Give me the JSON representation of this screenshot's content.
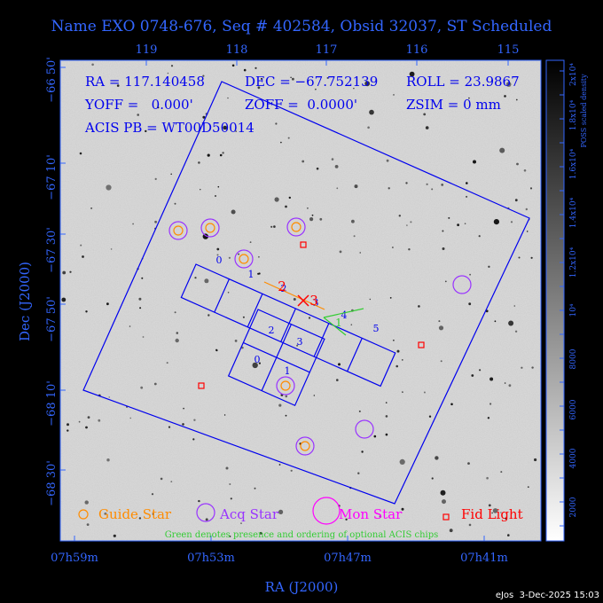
{
  "title": "Name EXO 0748-676, Seq # 402584, Obsid 32037, ST Scheduled",
  "info": {
    "ra": "RA = 117.140458",
    "dec": "DEC = −67.752139",
    "roll": "ROLL = 23.9867",
    "yoff": "YOFF =   0.000'",
    "zoff": "ZOFF =  0.0000'",
    "zsim": "ZSIM = 0 mm",
    "acis_pb": "ACIS PB = WT00D50014"
  },
  "axes": {
    "xlabel": "RA (J2000)",
    "ylabel": "Dec (J2000)",
    "bottom_ticks": [
      "07h59m",
      "07h53m",
      "07h47m",
      "07h41m"
    ],
    "top_ticks": [
      "119",
      "118",
      "117",
      "116",
      "115"
    ],
    "left_ticks": [
      "−66 50'",
      "−67 10'",
      "−67 30'",
      "−67 50'",
      "−68 10'",
      "−68 30'"
    ]
  },
  "colorbar": {
    "label": "POSS scaled density",
    "ticks": [
      "2000",
      "4000",
      "6000",
      "8000",
      "10⁴",
      "1.2x10⁴",
      "1.4x10⁴",
      "1.6x10⁴",
      "1.8x10⁴",
      "2x10⁴"
    ]
  },
  "chips": {
    "s_labels": [
      "0",
      "1",
      "2",
      "3",
      "4",
      "5"
    ],
    "i_labels": [
      "2",
      "3",
      "0",
      "1"
    ],
    "markers": [
      "2",
      "3",
      "1"
    ]
  },
  "legend": {
    "guide": "Guide Star",
    "acq": "Acq Star",
    "mon": "Mon Star",
    "fid": "Fid Light",
    "note": "Green denotes presence and ordering of optional ACIS chips"
  },
  "footer": "eJos  3-Dec-2025 15:03",
  "colors": {
    "blue": "#3366ff",
    "guide": "#ff8c00",
    "acq": "#9933ff",
    "mon": "#ff00ff",
    "fid": "#ff0000",
    "green": "#33cc33"
  }
}
